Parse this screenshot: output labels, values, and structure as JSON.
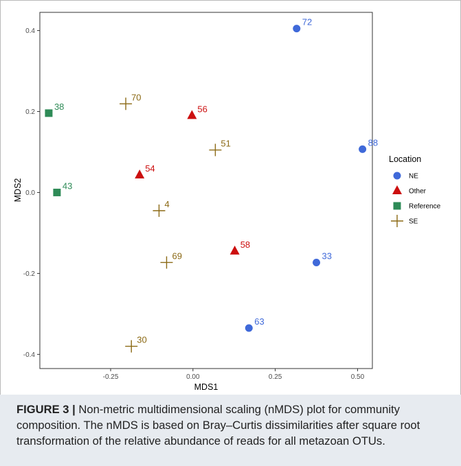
{
  "chart_data": {
    "type": "scatter",
    "xlabel": "MDS1",
    "ylabel": "MDS2",
    "xlim": [
      -0.465,
      0.545
    ],
    "ylim": [
      -0.435,
      0.445
    ],
    "x_ticks": [
      {
        "value": -0.25,
        "label": "-0.25"
      },
      {
        "value": 0.0,
        "label": "0.00"
      },
      {
        "value": 0.25,
        "label": "0.25"
      },
      {
        "value": 0.5,
        "label": "0.50"
      }
    ],
    "y_ticks": [
      {
        "value": -0.4,
        "label": "-0.4"
      },
      {
        "value": -0.2,
        "label": "-0.2"
      },
      {
        "value": 0.0,
        "label": "0.0"
      },
      {
        "value": 0.2,
        "label": "0.2"
      },
      {
        "value": 0.4,
        "label": "0.4"
      }
    ],
    "grid": false,
    "legend_position": "right",
    "legend_title": "Location",
    "series": [
      {
        "name": "NE",
        "color": "#3f69d9",
        "marker": "circle",
        "points": [
          {
            "x": 0.315,
            "y": 0.405,
            "label": "72"
          },
          {
            "x": 0.515,
            "y": 0.107,
            "label": "88"
          },
          {
            "x": 0.375,
            "y": -0.173,
            "label": "33"
          },
          {
            "x": 0.17,
            "y": -0.335,
            "label": "63"
          }
        ]
      },
      {
        "name": "Other",
        "color": "#cc0f0f",
        "marker": "triangle",
        "points": [
          {
            "x": -0.003,
            "y": 0.19,
            "label": "56"
          },
          {
            "x": -0.162,
            "y": 0.043,
            "label": "54"
          },
          {
            "x": 0.127,
            "y": -0.145,
            "label": "58"
          }
        ]
      },
      {
        "name": "Reference",
        "color": "#2e8b57",
        "marker": "square",
        "points": [
          {
            "x": -0.438,
            "y": 0.196,
            "label": "38"
          },
          {
            "x": -0.413,
            "y": 0.0,
            "label": "43"
          }
        ]
      },
      {
        "name": "SE",
        "color": "#8b6914",
        "marker": "plus",
        "points": [
          {
            "x": -0.204,
            "y": 0.219,
            "label": "70"
          },
          {
            "x": 0.068,
            "y": 0.105,
            "label": "51"
          },
          {
            "x": -0.103,
            "y": -0.045,
            "label": "4"
          },
          {
            "x": -0.08,
            "y": -0.173,
            "label": "69"
          },
          {
            "x": -0.187,
            "y": -0.38,
            "label": "30"
          }
        ]
      }
    ]
  },
  "caption": {
    "label": "FIGURE 3 |",
    "text": " Non-metric multidimensional scaling (nMDS) plot for community composition. The nMDS is based on Bray–Curtis dissimilarities after square root transformation of the relative abundance of reads for all metazoan OTUs."
  }
}
